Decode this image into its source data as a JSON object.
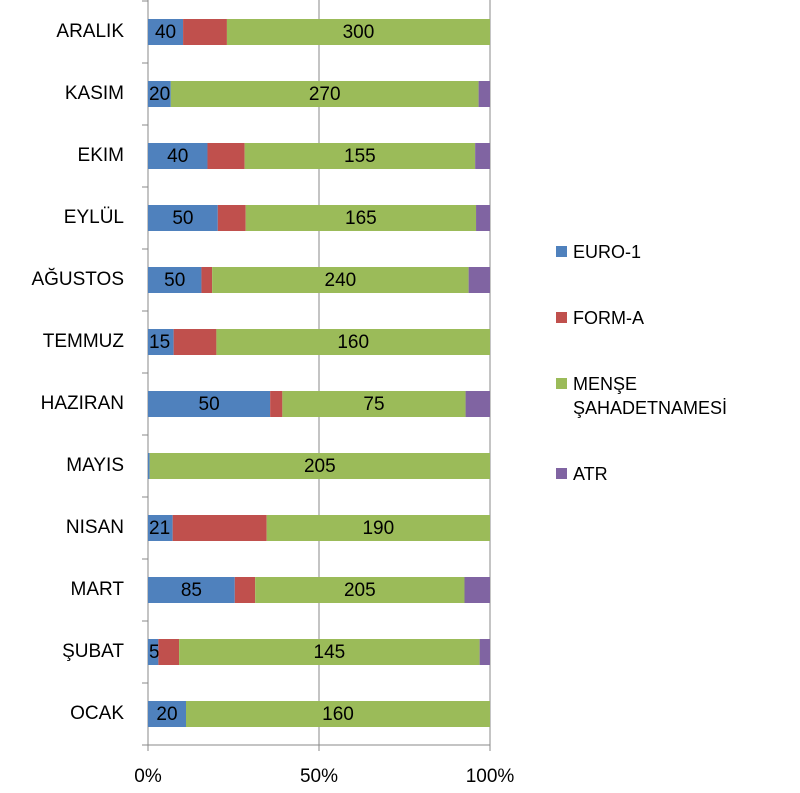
{
  "chart_data": {
    "type": "bar",
    "orientation": "horizontal",
    "stacked": "percent",
    "categories": [
      "OCAK",
      "ŞUBAT",
      "MART",
      "NISAN",
      "MAYIS",
      "HAZIRAN",
      "TEMMUZ",
      "AĞUSTOS",
      "EYLÜL",
      "EKIM",
      "KASIM",
      "ARALIK"
    ],
    "series": [
      {
        "name": "EURO-1",
        "color": "#4f81bd",
        "show_labels": true,
        "values": [
          20,
          5,
          85,
          21,
          1,
          50,
          15,
          50,
          50,
          40,
          20,
          40
        ]
      },
      {
        "name": "FORM-A",
        "color": "#c0504d",
        "show_labels": false,
        "values": [
          0,
          10,
          20,
          80,
          0,
          5,
          25,
          10,
          20,
          25,
          0,
          50
        ]
      },
      {
        "name": "MENŞE ŞAHADETNAMESİ",
        "color": "#9bbb59",
        "show_labels": true,
        "values": [
          160,
          145,
          205,
          190,
          205,
          75,
          160,
          240,
          165,
          155,
          270,
          300
        ]
      },
      {
        "name": "ATR",
        "color": "#8064a2",
        "show_labels": false,
        "values": [
          0,
          5,
          25,
          0,
          0,
          10,
          0,
          20,
          10,
          10,
          10,
          0
        ]
      }
    ],
    "xlim": [
      0,
      100
    ],
    "xticks": [
      {
        "value": 0,
        "label": "0%"
      },
      {
        "value": 50,
        "label": "50%"
      },
      {
        "value": 100,
        "label": "100%"
      }
    ],
    "grid": true,
    "legend": "right"
  }
}
